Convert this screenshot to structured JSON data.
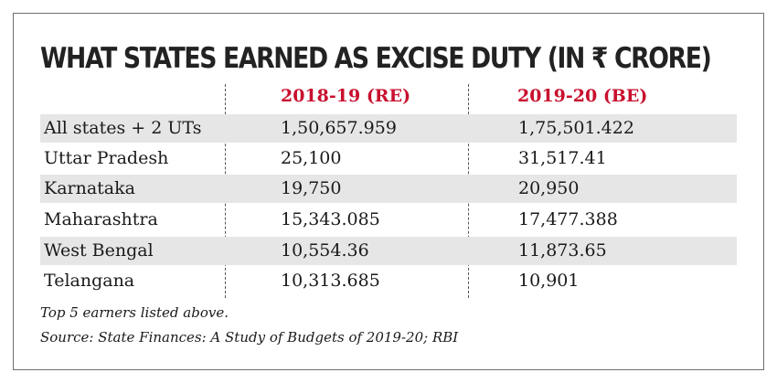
{
  "chart_data": {
    "type": "table",
    "title": "WHAT STATES EARNED AS EXCISE DUTY (IN ₹ CRORE)",
    "columns": [
      "2018-19 (RE)",
      "2019-20 (BE)"
    ],
    "rows": [
      {
        "label": "All states + 2 UTs",
        "values": [
          "1,50,657.959",
          "1,75,501.422"
        ]
      },
      {
        "label": "Uttar Pradesh",
        "values": [
          "25,100",
          "31,517.41"
        ]
      },
      {
        "label": "Karnataka",
        "values": [
          "19,750",
          "20,950"
        ]
      },
      {
        "label": "Maharashtra",
        "values": [
          "15,343.085",
          "17,477.388"
        ]
      },
      {
        "label": "West Bengal",
        "values": [
          "10,554.36",
          "11,873.65"
        ]
      },
      {
        "label": "Telangana",
        "values": [
          "10,313.685",
          "10,901"
        ]
      }
    ],
    "notes": [
      "Top 5 earners listed above.",
      "Source: State Finances: A Study of Budgets of 2019-20; RBI"
    ],
    "colors": {
      "header": "#c8102e",
      "title": "#222222",
      "shade": "#e6e6e6"
    }
  }
}
